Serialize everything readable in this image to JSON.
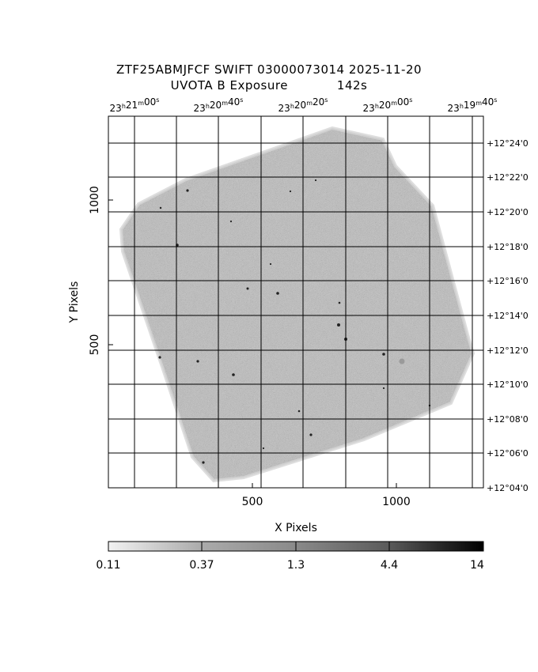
{
  "title": {
    "line1": "ZTF25ABMJFCF SWIFT 03000073014 2025-11-20",
    "filter_text": "UVOTA B Exposure",
    "exposure": "142s"
  },
  "axes": {
    "xlabel": "X Pixels",
    "ylabel": "Y Pixels",
    "x_ticks": [
      "500",
      "1000"
    ],
    "y_ticks": [
      "500",
      "1000"
    ],
    "ra_ticks": [
      {
        "h": "23",
        "m": "21",
        "s": "00"
      },
      {
        "h": "23",
        "m": "20",
        "s": "40"
      },
      {
        "h": "23",
        "m": "20",
        "s": "20"
      },
      {
        "h": "23",
        "m": "20",
        "s": "00"
      },
      {
        "h": "23",
        "m": "19",
        "s": "40"
      }
    ],
    "dec_ticks": [
      "+12°24'0",
      "+12°22'0",
      "+12°20'0",
      "+12°18'0",
      "+12°16'0",
      "+12°14'0",
      "+12°12'0",
      "+12°10'0",
      "+12°08'0",
      "+12°06'0",
      "+12°04'0"
    ]
  },
  "colorbar": {
    "labels": [
      "0.11",
      "0.37",
      "1.3",
      "4.4",
      "14"
    ]
  },
  "image": {
    "background_color": "#b4b4b4",
    "border_color": "#d2d2d2"
  }
}
